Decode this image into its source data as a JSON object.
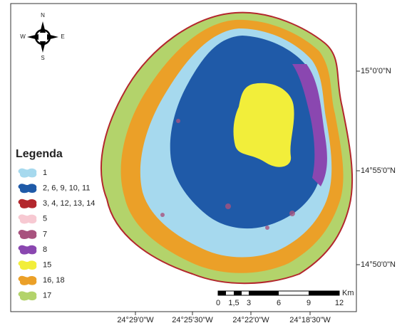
{
  "compass": {
    "n": "N",
    "e": "E",
    "s": "S",
    "w": "W"
  },
  "legend": {
    "title": "Legenda",
    "items": [
      {
        "label": "1",
        "color": "#a6d9ee"
      },
      {
        "label": "2, 6, 9, 10, 11",
        "color": "#1f5aa8"
      },
      {
        "label": "3, 4, 12, 13, 14",
        "color": "#b3272d"
      },
      {
        "label": "5",
        "color": "#f7c9d2"
      },
      {
        "label": "7",
        "color": "#a8527e"
      },
      {
        "label": "8",
        "color": "#8a47b0"
      },
      {
        "label": "15",
        "color": "#f2ee3a"
      },
      {
        "label": "16, 18",
        "color": "#eba028"
      },
      {
        "label": "17",
        "color": "#b3d36b"
      }
    ]
  },
  "latitude_labels": [
    "15°0'0\"N",
    "14°55'0\"N",
    "14°50'0\"N"
  ],
  "longitude_labels": [
    "24°29'0\"W",
    "24°25'30\"W",
    "24°22'0\"W",
    "24°18'30\"W"
  ],
  "scale_bar": {
    "unit": "Km",
    "labels": [
      "0",
      "1,5",
      "3",
      "6",
      "9",
      "12"
    ]
  }
}
